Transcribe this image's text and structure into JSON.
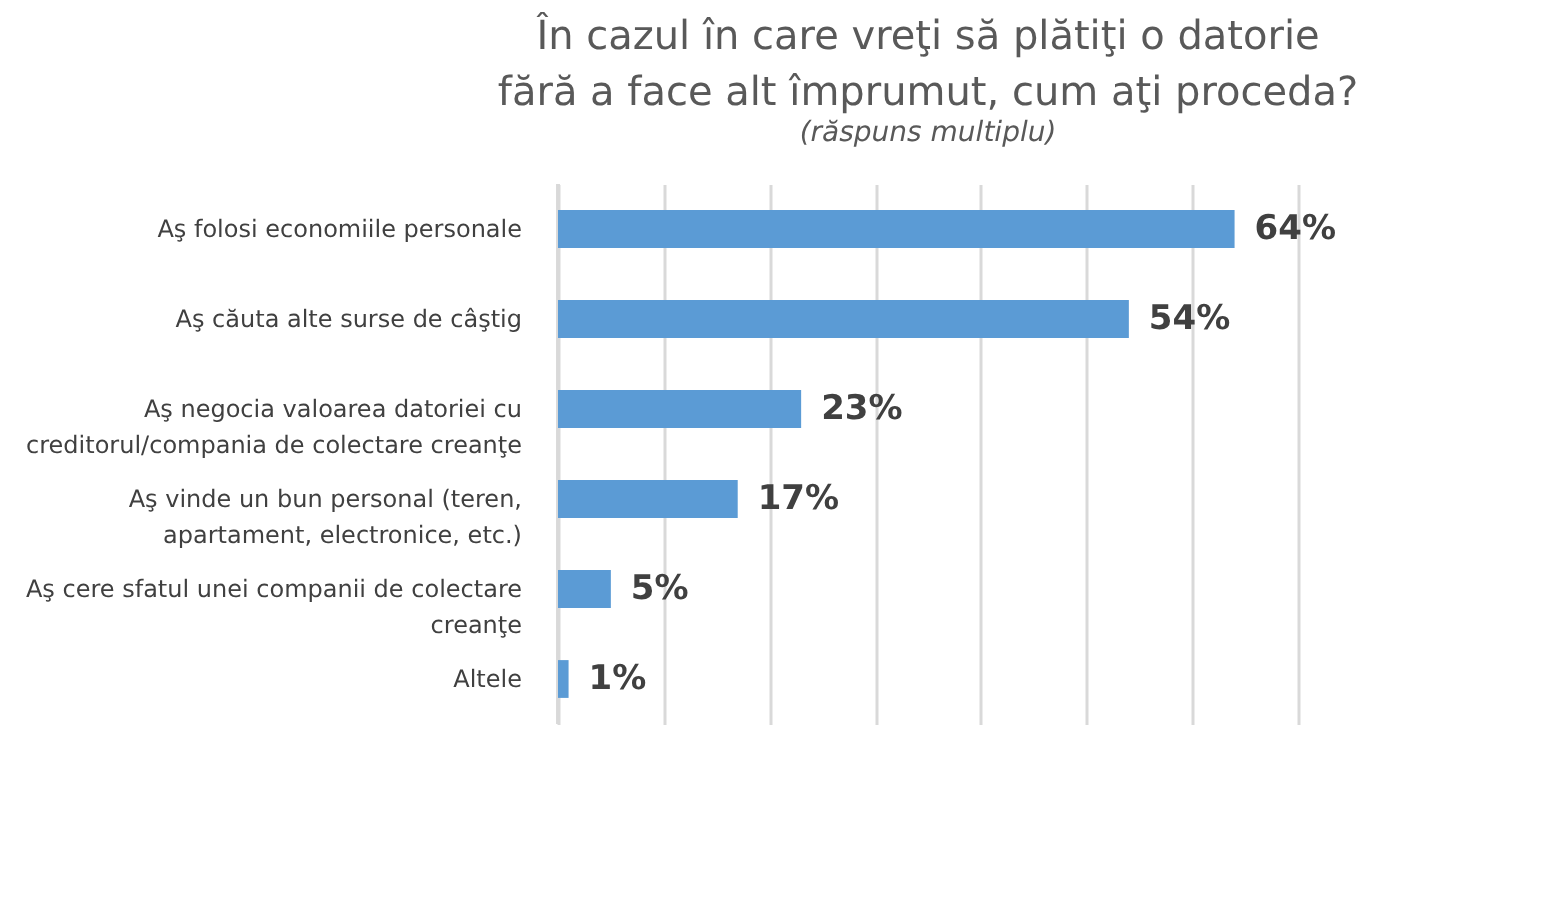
{
  "chart_data": {
    "type": "bar",
    "orientation": "horizontal",
    "title": "În cazul în care vreţi să plătiţi o datorie fără a face alt împrumut, cum aţi proceda?",
    "subtitle": "(răspuns multiplu)",
    "categories": [
      "Aş folosi economiile personale",
      "Aş căuta alte surse de câştig",
      "Aş negocia valoarea datoriei cu creditorul/compania de colectare creanţe",
      "Aş vinde un bun personal (teren, apartament, electronice, etc.)",
      "Aş cere sfatul unei companii de colectare creanţe",
      "Altele"
    ],
    "values": [
      64,
      54,
      23,
      17,
      5,
      1
    ],
    "value_labels": [
      "64%",
      "54%",
      "23%",
      "17%",
      "5%",
      "1%"
    ],
    "color": "#5b9bd5",
    "xlim": [
      0,
      70
    ],
    "xticks": [
      {
        "value": 0,
        "label": null
      },
      {
        "value": 10,
        "label": null
      },
      {
        "value": 20,
        "label": null
      },
      {
        "value": 30,
        "label": null
      },
      {
        "value": 40,
        "label": null
      },
      {
        "value": 50,
        "label": null
      },
      {
        "value": 60,
        "label": null
      },
      {
        "value": 70,
        "label": null
      }
    ],
    "grid": "x",
    "tick_labels": "y"
  }
}
